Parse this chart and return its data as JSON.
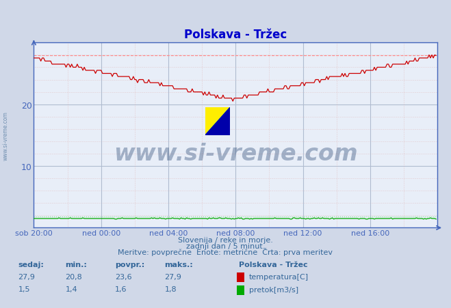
{
  "title": "Polskava - Tržec",
  "title_color": "#0000cc",
  "bg_color": "#d0d8e8",
  "plot_bg_color": "#e8eef8",
  "grid_color_major": "#b0bcd0",
  "xlabel_ticks": [
    "sob 20:00",
    "ned 00:00",
    "ned 04:00",
    "ned 08:00",
    "ned 12:00",
    "ned 16:00"
  ],
  "ylim": [
    0,
    30
  ],
  "xlim": [
    0,
    288
  ],
  "temp_max": 27.9,
  "flow_max": 1.8,
  "temp_color": "#cc0000",
  "flow_color": "#00aa00",
  "temp_dashed_color": "#ff8888",
  "flow_dashed_color": "#88dd88",
  "axis_color": "#4466bb",
  "watermark_text": "www.si-vreme.com",
  "watermark_color": "#1a3a6a",
  "watermark_alpha": 0.35,
  "sidebar_text": "www.si-vreme.com",
  "sidebar_color": "#6688aa",
  "footer_line1": "Slovenija / reke in morje.",
  "footer_line2": "zadnji dan / 5 minut.",
  "footer_line3": "Meritve: povprečne  Enote: metrične  Črta: prva meritev",
  "footer_color": "#336699",
  "legend_title": "Polskava - Tržec",
  "legend_labels": [
    "temperatura[C]",
    "pretok[m3/s]"
  ],
  "legend_colors": [
    "#cc0000",
    "#00aa00"
  ],
  "table_headers": [
    "sedaj:",
    "min.:",
    "povpr.:",
    "maks.:"
  ],
  "table_temp": [
    27.9,
    20.8,
    23.6,
    27.9
  ],
  "table_flow": [
    1.5,
    1.4,
    1.6,
    1.8
  ],
  "table_color": "#336699"
}
